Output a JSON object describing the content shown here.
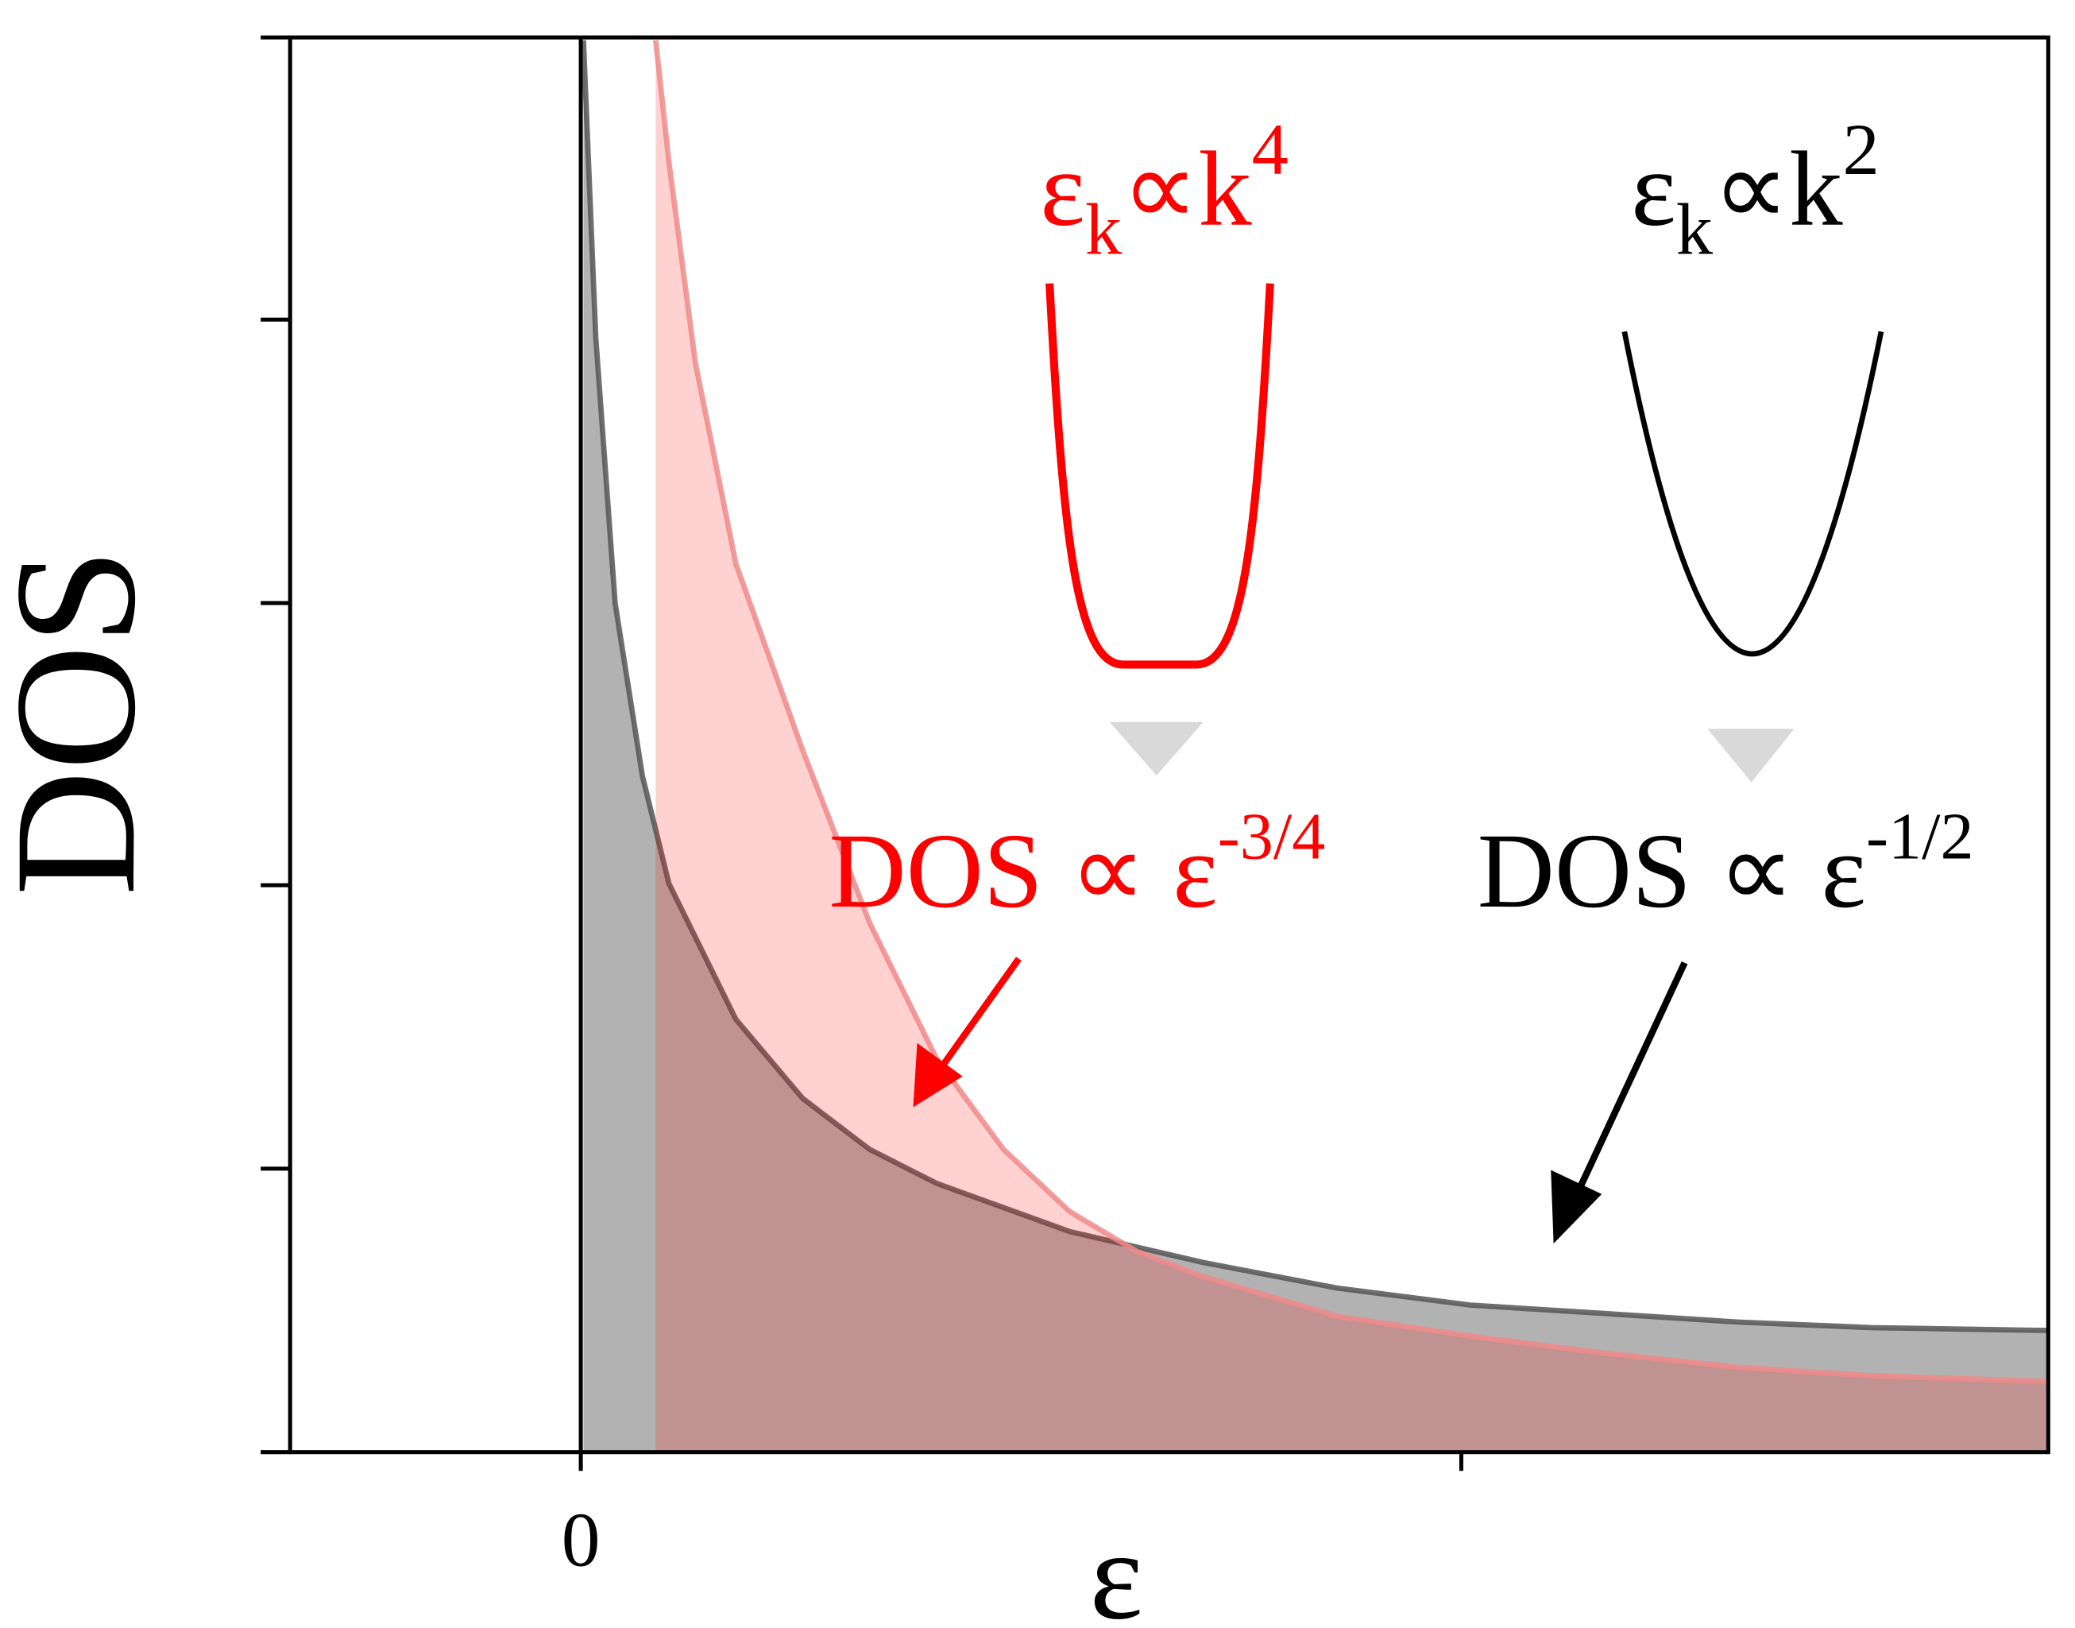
{
  "chart_data": {
    "type": "area",
    "xlabel": "ε",
    "ylabel": "DOS",
    "xlim": [
      -0.33,
      1.666
    ],
    "ylim": [
      0,
      5
    ],
    "xticks": [
      0
    ],
    "series": [
      {
        "color": "#000000",
        "x": [
          0.003,
          0.017,
          0.039,
          0.07,
          0.1,
          0.176,
          0.252,
          0.328,
          0.404,
          0.555,
          0.707,
          0.859,
          1.01,
          1.162,
          1.314,
          1.466,
          1.666
        ],
        "values": [
          4.99,
          3.94,
          3.0,
          2.39,
          2.01,
          1.53,
          1.25,
          1.07,
          0.95,
          0.78,
          0.67,
          0.58,
          0.52,
          0.49,
          0.46,
          0.44,
          0.43
        ]
      },
      {
        "color": "#ff0000",
        "x": [
          0.085,
          0.1,
          0.13,
          0.176,
          0.252,
          0.328,
          0.404,
          0.48,
          0.555,
          0.631,
          0.707,
          0.859,
          1.01,
          1.162,
          1.314,
          1.466,
          1.666
        ],
        "values": [
          4.99,
          4.56,
          3.85,
          3.14,
          2.48,
          1.87,
          1.39,
          1.07,
          0.85,
          0.71,
          0.62,
          0.48,
          0.41,
          0.35,
          0.3,
          0.27,
          0.25
        ]
      }
    ],
    "dispersions": [
      {
        "base": "ε",
        "sub": "k",
        "mid": "∝k",
        "sup": "4"
      },
      {
        "base": "ε",
        "sub": "k",
        "mid": "∝k",
        "sup": "2"
      }
    ],
    "annotations": [
      {
        "base": "DOS ∝ ε",
        "sup": "-3/4"
      },
      {
        "base": "DOS ∝ ε",
        "sup": "-1/2"
      }
    ]
  }
}
